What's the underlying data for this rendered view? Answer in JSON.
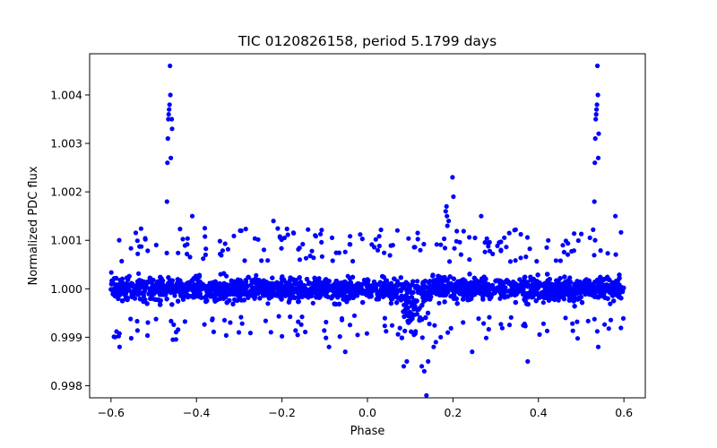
{
  "chart_data": {
    "type": "scatter",
    "title": "TIC 0120826158, period 5.1799 days",
    "xlabel": "Phase",
    "ylabel": "Normalized PDC flux",
    "xlim": [
      -0.65,
      0.65
    ],
    "ylim": [
      0.99775,
      1.00485
    ],
    "x_ticks": [
      -0.6,
      -0.4,
      -0.2,
      0.0,
      0.2,
      0.4,
      0.6
    ],
    "x_tick_labels": [
      "−0.6",
      "−0.4",
      "−0.2",
      "0.0",
      "0.2",
      "0.4",
      "0.6"
    ],
    "y_ticks": [
      0.998,
      0.999,
      1.0,
      1.001,
      1.002,
      1.003,
      1.004
    ],
    "y_tick_labels": [
      "0.998",
      "0.999",
      "1.000",
      "1.001",
      "1.002",
      "1.003",
      "1.004"
    ],
    "marker_color": "#0000ff",
    "series": [
      {
        "name": "PDC flux",
        "description_values": "dense band of points spanning phase -0.6 to 0.6, centered at 1.000 with scatter ~0.0004",
        "x_range": [
          -0.6,
          0.6
        ],
        "baseline": 1.0,
        "scatter": 0.0004,
        "features": [
          {
            "phase": -0.46,
            "peak_flux": 1.0046,
            "kind": "flare"
          },
          {
            "phase": 0.54,
            "peak_flux": 1.0046,
            "kind": "flare"
          },
          {
            "phase": 0.2,
            "peak_flux": 1.0023,
            "kind": "spike"
          },
          {
            "phase": 0.12,
            "min_flux": 0.9978,
            "kind": "dip"
          }
        ],
        "points": [
          [
            -0.462,
            1.0046
          ],
          [
            -0.461,
            1.004
          ],
          [
            -0.463,
            1.0038
          ],
          [
            -0.464,
            1.0037
          ],
          [
            -0.465,
            1.0036
          ],
          [
            -0.466,
            1.0035
          ],
          [
            -0.467,
            1.0031
          ],
          [
            -0.46,
            1.0027
          ],
          [
            -0.468,
            1.0026
          ],
          [
            -0.469,
            1.0018
          ],
          [
            -0.458,
            1.0035
          ],
          [
            -0.457,
            1.0033
          ],
          [
            0.538,
            1.0046
          ],
          [
            0.539,
            1.004
          ],
          [
            0.537,
            1.0038
          ],
          [
            0.536,
            1.0037
          ],
          [
            0.535,
            1.0036
          ],
          [
            0.534,
            1.0035
          ],
          [
            0.533,
            1.0031
          ],
          [
            0.54,
            1.0027
          ],
          [
            0.532,
            1.0026
          ],
          [
            0.531,
            1.0018
          ],
          [
            0.541,
            1.0032
          ],
          [
            0.199,
            1.0023
          ],
          [
            0.201,
            1.0019
          ],
          [
            0.185,
            1.0017
          ],
          [
            0.183,
            1.0016
          ],
          [
            0.186,
            1.0015
          ],
          [
            0.19,
            1.0014
          ],
          [
            0.187,
            1.0013
          ],
          [
            0.266,
            1.0015
          ],
          [
            -0.41,
            1.0015
          ],
          [
            -0.22,
            1.0014
          ],
          [
            0.58,
            1.0015
          ],
          [
            0.138,
            0.9978
          ],
          [
            0.133,
            0.9983
          ],
          [
            0.127,
            0.9984
          ],
          [
            0.142,
            0.9985
          ],
          [
            0.085,
            0.9984
          ],
          [
            0.092,
            0.9985
          ],
          [
            0.375,
            0.9985
          ],
          [
            0.155,
            0.9988
          ],
          [
            0.16,
            0.9989
          ],
          [
            0.245,
            0.9987
          ],
          [
            0.54,
            0.9988
          ],
          [
            -0.09,
            0.9988
          ],
          [
            -0.052,
            0.9987
          ],
          [
            -0.58,
            0.9988
          ]
        ]
      }
    ]
  }
}
